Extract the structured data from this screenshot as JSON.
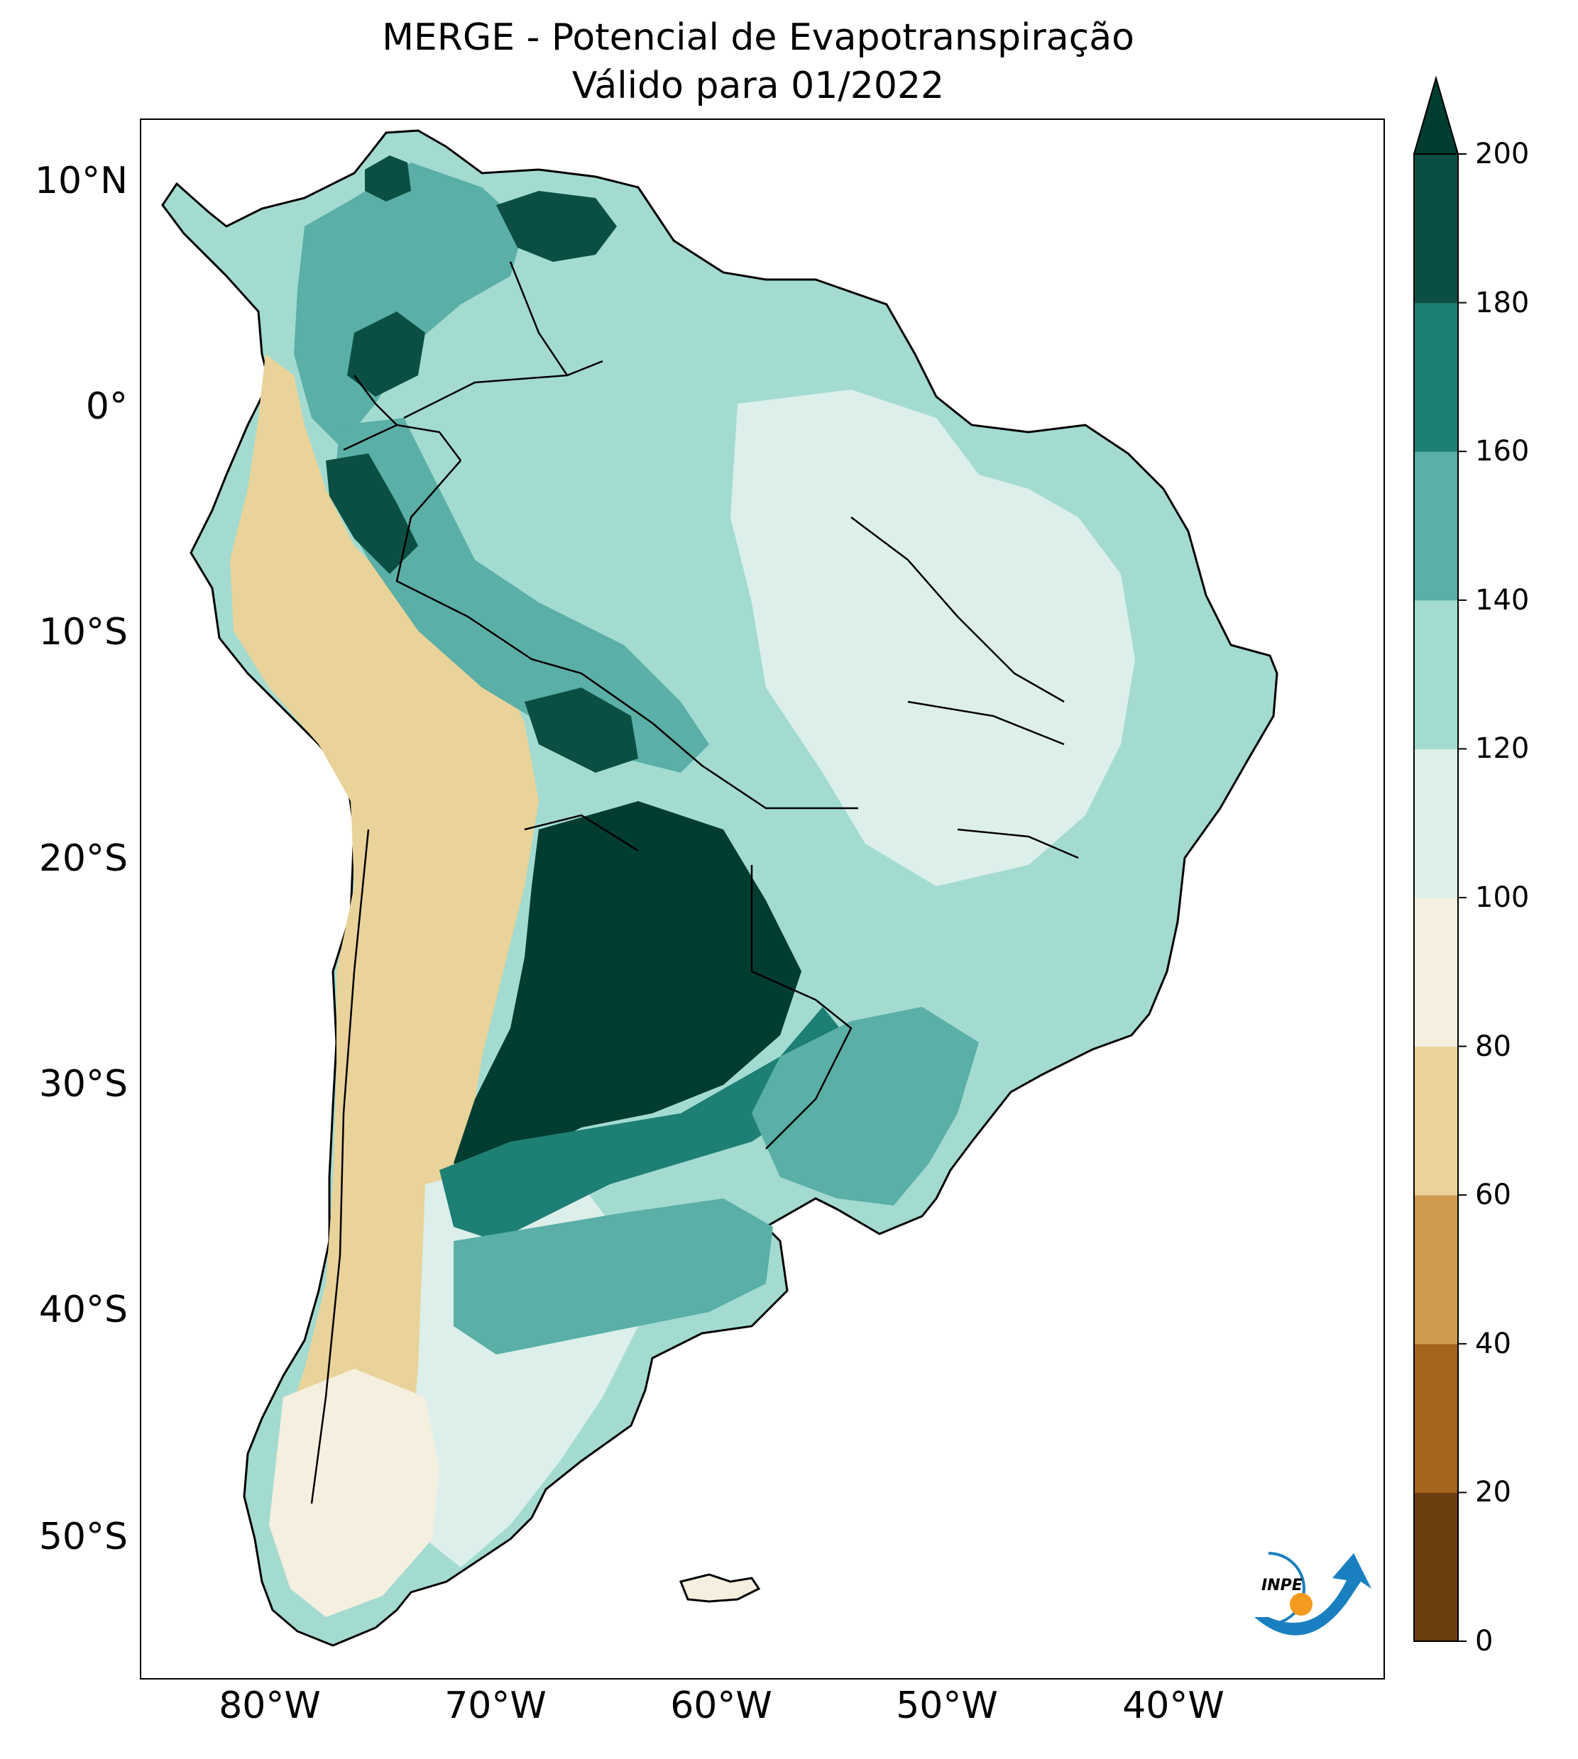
{
  "title": {
    "line1": "MERGE - Potencial de Evapotranspiração",
    "line2": "Válido para 01/2022"
  },
  "map": {
    "region": "South America",
    "extent": {
      "lon": [
        -85,
        -30
      ],
      "lat": [
        -56,
        13
      ]
    },
    "lat_ticks": [
      "10°N",
      "0°",
      "10°S",
      "20°S",
      "30°S",
      "40°S",
      "50°S"
    ],
    "lon_ticks": [
      "80°W",
      "70°W",
      "60°W",
      "50°W",
      "40°W"
    ],
    "logo_text": "INPE"
  },
  "colorbar": {
    "levels": [
      0,
      20,
      40,
      60,
      80,
      100,
      120,
      140,
      160,
      180,
      200
    ],
    "colors": [
      "#6b3e0d",
      "#a6641e",
      "#cd9c4f",
      "#e9d39a",
      "#f5efdf",
      "#dcefeb",
      "#a3dbd1",
      "#5aafa6",
      "#1e7f74",
      "#0b4f44"
    ],
    "extend_color": "#013c31",
    "extend": "max",
    "tick_labels": [
      "0",
      "20",
      "40",
      "60",
      "80",
      "100",
      "120",
      "140",
      "160",
      "180",
      "200"
    ]
  }
}
